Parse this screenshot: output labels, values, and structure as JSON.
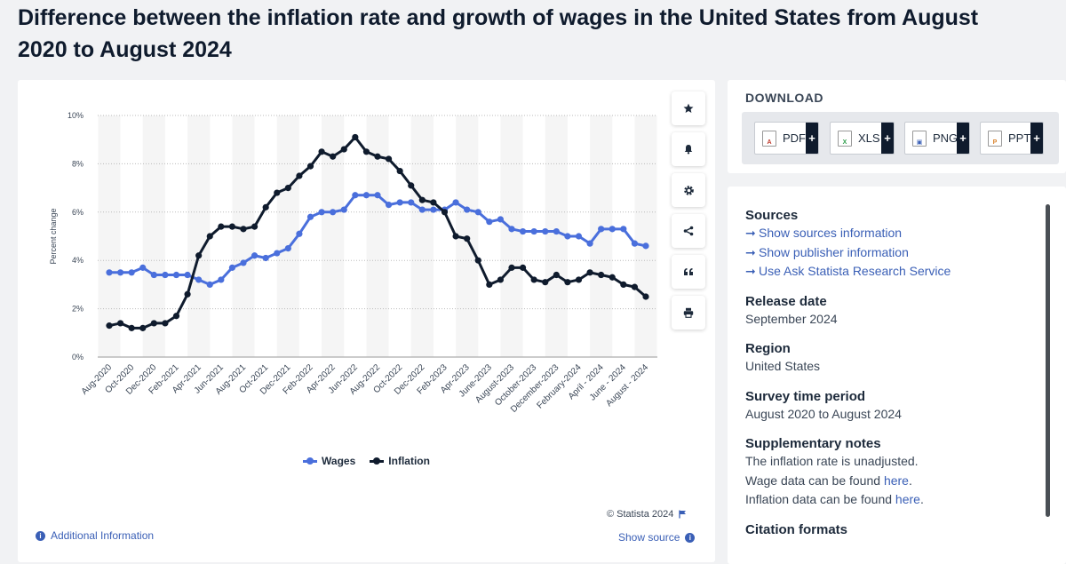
{
  "title": "Difference between the inflation rate and growth of wages in the United States from August 2020 to August 2024",
  "toolbar": {
    "icons": [
      "star-icon",
      "bell-icon",
      "gear-icon",
      "share-icon",
      "quote-icon",
      "print-icon"
    ]
  },
  "chart_data": {
    "type": "line",
    "ylabel": "Percent change",
    "xlabel": "",
    "ylim": [
      0,
      10
    ],
    "y_ticks": [
      "0%",
      "2%",
      "4%",
      "6%",
      "8%",
      "10%"
    ],
    "x": [
      "Aug 2020",
      "Sep 2020",
      "Oct 2020",
      "Nov 2020",
      "Dec 2020",
      "Jan 2021",
      "Feb 2021",
      "Mar 2021",
      "Apr 2021",
      "May 2021",
      "Jun 2021",
      "Jul 2021",
      "Aug 2021",
      "Sep 2021",
      "Oct 2021",
      "Nov 2021",
      "Dec 2021",
      "Jan 2022",
      "Feb 2022",
      "Mar 2022",
      "Apr 2022",
      "May 2022",
      "Jun 2022",
      "Jul 2022",
      "Aug 2022",
      "Sep 2022",
      "Oct 2022",
      "Nov 2022",
      "Dec 2022",
      "Jan 2023",
      "Feb 2023",
      "Mar 2023",
      "Apr 2023",
      "May 2023",
      "Jun 2023",
      "Jul 2023",
      "Aug 2023",
      "Sep 2023",
      "Oct 2023",
      "Nov 2023",
      "Dec 2023",
      "Jan 2024",
      "Feb 2024",
      "Mar 2024",
      "Apr 2024",
      "May 2024",
      "Jun 2024",
      "Jul 2024",
      "Aug 2024"
    ],
    "tick_labels": [
      "Aug-2020",
      "Oct-2020",
      "Dec-2020",
      "Feb-2021",
      "Apr-2021",
      "Jun-2021",
      "Aug-2021",
      "Oct-2021",
      "Dec-2021",
      "Feb-2022",
      "Apr-2022",
      "Jun-2022",
      "Aug-2022",
      "Oct-2022",
      "Dec-2022",
      "Feb-2023",
      "Apr-2023",
      "June-2023",
      "August-2023",
      "October-2023",
      "December-2023",
      "February-2024",
      "April - 2024",
      "June - 2024",
      "August - 2024"
    ],
    "series": [
      {
        "name": "Wages",
        "color": "#4a6fdc",
        "values": [
          3.5,
          3.5,
          3.5,
          3.7,
          3.4,
          3.4,
          3.4,
          3.4,
          3.2,
          3.0,
          3.2,
          3.7,
          3.9,
          4.2,
          4.1,
          4.3,
          4.5,
          5.1,
          5.8,
          6.0,
          6.0,
          6.1,
          6.7,
          6.7,
          6.7,
          6.3,
          6.4,
          6.4,
          6.1,
          6.1,
          6.1,
          6.4,
          6.1,
          6.0,
          5.6,
          5.7,
          5.3,
          5.2,
          5.2,
          5.2,
          5.2,
          5.0,
          5.0,
          4.7,
          5.3,
          5.3,
          5.3,
          4.7,
          4.6
        ]
      },
      {
        "name": "Inflation",
        "color": "#0f1b2d",
        "values": [
          1.3,
          1.4,
          1.2,
          1.2,
          1.4,
          1.4,
          1.7,
          2.6,
          4.2,
          5.0,
          5.4,
          5.4,
          5.3,
          5.4,
          6.2,
          6.8,
          7.0,
          7.5,
          7.9,
          8.5,
          8.3,
          8.6,
          9.1,
          8.5,
          8.3,
          8.2,
          7.7,
          7.1,
          6.5,
          6.4,
          6.0,
          5.0,
          4.9,
          4.0,
          3.0,
          3.2,
          3.7,
          3.7,
          3.2,
          3.1,
          3.4,
          3.1,
          3.2,
          3.5,
          3.4,
          3.3,
          3.0,
          2.9,
          2.5
        ]
      }
    ],
    "legend": "bottom-center",
    "grid": true
  },
  "footer": {
    "copyright": "© Statista 2024",
    "additional_info": "Additional Information",
    "show_source": "Show source"
  },
  "download": {
    "title": "DOWNLOAD",
    "formats": [
      {
        "label": "PDF",
        "color": "#c0392b"
      },
      {
        "label": "XLS",
        "color": "#2e9d4a"
      },
      {
        "label": "PNG",
        "color": "#3a5fb6"
      },
      {
        "label": "PPT",
        "color": "#d9822b"
      }
    ],
    "plus": "+"
  },
  "info": {
    "sources_title": "Sources",
    "links": [
      "Show sources information",
      "Show publisher information",
      "Use Ask Statista Research Service"
    ],
    "link_arrow": "➞",
    "release_title": "Release date",
    "release_value": "September 2024",
    "region_title": "Region",
    "region_value": "United States",
    "survey_title": "Survey time period",
    "survey_value": "August 2020 to August 2024",
    "notes_title": "Supplementary notes",
    "note1": "The inflation rate is unadjusted.",
    "note2_prefix": "Wage data can be found ",
    "note3_prefix": "Inflation data can be found ",
    "here": "here",
    "period": ".",
    "citation_title": "Citation formats"
  }
}
